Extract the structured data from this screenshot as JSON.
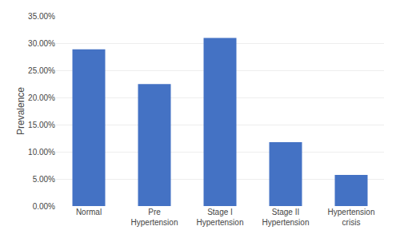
{
  "chart_data": {
    "type": "bar",
    "categories": [
      "Normal",
      "Pre\nHypertension",
      "Stage I\nHypertension",
      "Stage II\nHypertension",
      "Hypertension\ncrisis"
    ],
    "values": [
      0.2885,
      0.2245,
      0.3095,
      0.1175,
      0.0575
    ],
    "color": "#4472C4",
    "ylabel": "Prevalence",
    "ylim": [
      0,
      0.35
    ],
    "yticks": [
      {
        "value": 0.0,
        "label": "0.00%"
      },
      {
        "value": 0.05,
        "label": "5.00%"
      },
      {
        "value": 0.1,
        "label": "10.00%"
      },
      {
        "value": 0.15,
        "label": "15.00%"
      },
      {
        "value": 0.2,
        "label": "20.00%"
      },
      {
        "value": 0.25,
        "label": "25.00%"
      },
      {
        "value": 0.3,
        "label": "30.00%"
      },
      {
        "value": 0.35,
        "label": "35.00%"
      }
    ],
    "grid": true
  }
}
